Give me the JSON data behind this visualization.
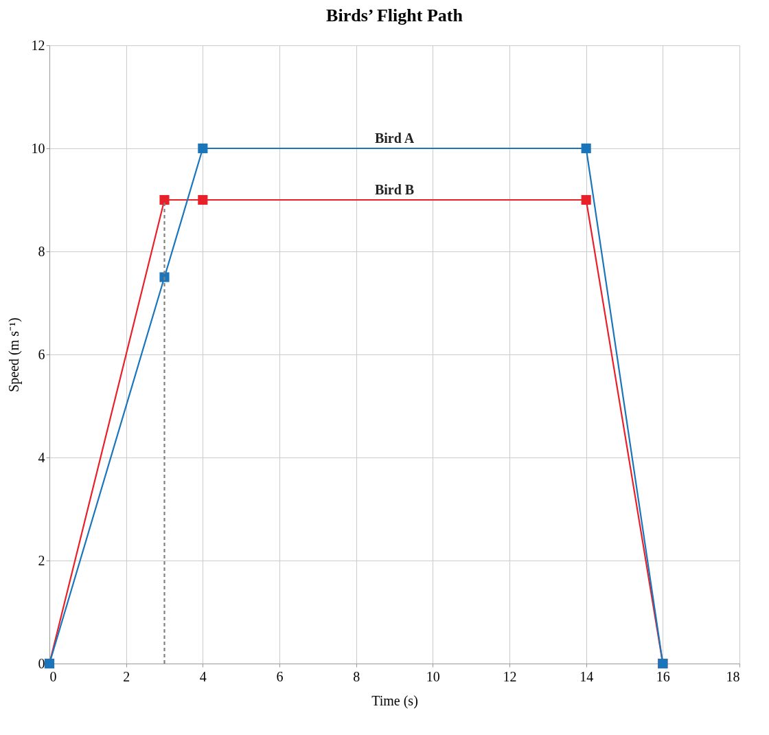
{
  "chart_data": {
    "type": "line",
    "title": "Birds’ Flight Path",
    "xlabel": "Time (s)",
    "ylabel": "Speed (m s⁻¹)",
    "xlim": [
      0,
      18
    ],
    "xticks": [
      0,
      2,
      4,
      6,
      8,
      10,
      12,
      14,
      16,
      18
    ],
    "ylim": [
      0,
      12
    ],
    "yticks": [
      0,
      2,
      4,
      6,
      8,
      10,
      12
    ],
    "grid": true,
    "marker": "square",
    "line_style": "solid",
    "series": [
      {
        "name": "Bird B",
        "color": "#e8202a",
        "x": [
          0,
          3,
          4,
          14,
          16
        ],
        "values": [
          0,
          9,
          9,
          9,
          0
        ]
      },
      {
        "name": "Bird A",
        "color": "#1a75bb",
        "x": [
          0,
          3,
          4,
          14,
          16
        ],
        "values": [
          0,
          7.5,
          10,
          10,
          0
        ]
      },
      {
        "type": "line",
        "color": "#808080",
        "x": [
          3,
          3
        ],
        "values": [
          0,
          9
        ],
        "marker": "none",
        "line_style": "dashed"
      }
    ]
  }
}
